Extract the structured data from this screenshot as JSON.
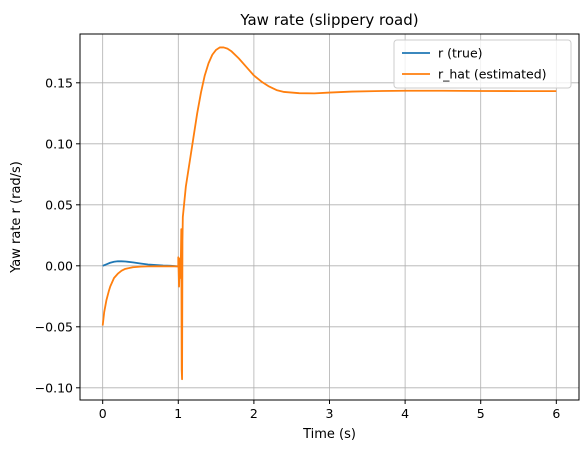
{
  "chart_data": {
    "type": "line",
    "title": "Yaw rate (slippery road)",
    "xlabel": "Time (s)",
    "ylabel": "Yaw rate r (rad/s)",
    "xlim": [
      -0.3,
      6.3
    ],
    "ylim": [
      -0.11,
      0.19
    ],
    "xticks": [
      0,
      1,
      2,
      3,
      4,
      5,
      6
    ],
    "xtick_labels": [
      "0",
      "1",
      "2",
      "3",
      "4",
      "5",
      "6"
    ],
    "yticks": [
      -0.1,
      -0.05,
      0.0,
      0.05,
      0.1,
      0.15
    ],
    "ytick_labels": [
      "−0.10",
      "−0.05",
      "0.00",
      "0.05",
      "0.10",
      "0.15"
    ],
    "grid": true,
    "legend_position": "top-right",
    "series": [
      {
        "name": "r (true)",
        "color": "#1f77b4",
        "points": [
          [
            0.0,
            0.0
          ],
          [
            0.05,
            0.0012
          ],
          [
            0.1,
            0.0025
          ],
          [
            0.15,
            0.0033
          ],
          [
            0.2,
            0.0037
          ],
          [
            0.25,
            0.0037
          ],
          [
            0.3,
            0.0035
          ],
          [
            0.4,
            0.0028
          ],
          [
            0.5,
            0.0019
          ],
          [
            0.6,
            0.0011
          ],
          [
            0.7,
            0.0006
          ],
          [
            0.8,
            0.0002
          ],
          [
            0.9,
            0.0
          ],
          [
            1.0,
            -0.0005
          ]
        ]
      },
      {
        "name": "r_hat (estimated)",
        "color": "#ff7f0e",
        "points": [
          [
            0.0,
            -0.049
          ],
          [
            0.02,
            -0.038
          ],
          [
            0.05,
            -0.028
          ],
          [
            0.08,
            -0.021
          ],
          [
            0.1,
            -0.017
          ],
          [
            0.15,
            -0.01
          ],
          [
            0.2,
            -0.0065
          ],
          [
            0.25,
            -0.004
          ],
          [
            0.3,
            -0.0025
          ],
          [
            0.4,
            -0.0012
          ],
          [
            0.5,
            -0.0007
          ],
          [
            0.6,
            -0.0005
          ],
          [
            0.7,
            -0.0004
          ],
          [
            0.8,
            -0.0004
          ],
          [
            0.9,
            -0.0004
          ],
          [
            1.0,
            -0.0005
          ],
          [
            1.0,
            0.007
          ],
          [
            1.01,
            -0.017
          ],
          [
            1.02,
            0.006
          ],
          [
            1.03,
            -0.01
          ],
          [
            1.04,
            0.03
          ],
          [
            1.045,
            -0.085
          ],
          [
            1.05,
            -0.093
          ],
          [
            1.055,
            0.02
          ],
          [
            1.06,
            0.04
          ],
          [
            1.1,
            0.065
          ],
          [
            1.15,
            0.085
          ],
          [
            1.2,
            0.105
          ],
          [
            1.25,
            0.125
          ],
          [
            1.3,
            0.142
          ],
          [
            1.35,
            0.156
          ],
          [
            1.4,
            0.166
          ],
          [
            1.45,
            0.173
          ],
          [
            1.5,
            0.177
          ],
          [
            1.55,
            0.179
          ],
          [
            1.6,
            0.179
          ],
          [
            1.65,
            0.178
          ],
          [
            1.7,
            0.176
          ],
          [
            1.8,
            0.17
          ],
          [
            1.9,
            0.163
          ],
          [
            2.0,
            0.156
          ],
          [
            2.1,
            0.151
          ],
          [
            2.2,
            0.147
          ],
          [
            2.3,
            0.144
          ],
          [
            2.4,
            0.1425
          ],
          [
            2.6,
            0.1415
          ],
          [
            2.8,
            0.1413
          ],
          [
            3.0,
            0.142
          ],
          [
            3.3,
            0.1428
          ],
          [
            3.6,
            0.1432
          ],
          [
            4.0,
            0.1435
          ],
          [
            4.5,
            0.1435
          ],
          [
            5.0,
            0.1433
          ],
          [
            5.5,
            0.1432
          ],
          [
            6.0,
            0.1432
          ]
        ]
      }
    ]
  }
}
